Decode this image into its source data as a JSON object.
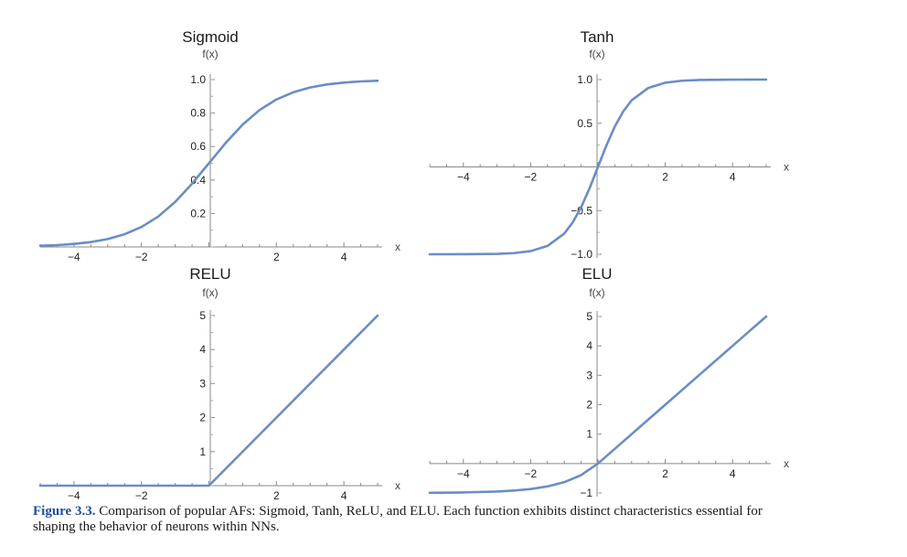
{
  "chart_data": [
    {
      "type": "line",
      "title": "Sigmoid",
      "xlabel": "x",
      "ylabel": "f(x)",
      "xlim": [
        -5,
        5
      ],
      "ylim": [
        0,
        1.0
      ],
      "xticks": [
        -4,
        -2,
        2,
        4
      ],
      "xtick_labels": [
        "−4",
        "−2",
        "2",
        "4"
      ],
      "yticks": [
        0.2,
        0.4,
        0.6,
        0.8,
        1.0
      ],
      "ytick_labels": [
        "0.2",
        "0.4",
        "0.6",
        "0.8",
        "1.0"
      ],
      "series": [
        {
          "color": "#6a8dc6",
          "x": [
            -5,
            -4.5,
            -4,
            -3.5,
            -3,
            -2.5,
            -2,
            -1.5,
            -1,
            -0.5,
            0,
            0.5,
            1,
            1.5,
            2,
            2.5,
            3,
            3.5,
            4,
            4.5,
            5
          ],
          "y": [
            0.007,
            0.011,
            0.018,
            0.029,
            0.047,
            0.076,
            0.119,
            0.182,
            0.269,
            0.378,
            0.5,
            0.622,
            0.731,
            0.818,
            0.881,
            0.924,
            0.953,
            0.971,
            0.982,
            0.989,
            0.993
          ]
        }
      ]
    },
    {
      "type": "line",
      "title": "Tanh",
      "xlabel": "x",
      "ylabel": "f(x)",
      "xlim": [
        -5,
        5
      ],
      "ylim": [
        -1.0,
        1.0
      ],
      "xticks": [
        -4,
        -2,
        2,
        4
      ],
      "xtick_labels": [
        "−4",
        "−2",
        "2",
        "4"
      ],
      "yticks": [
        -1.0,
        -0.5,
        0.5,
        1.0
      ],
      "ytick_labels": [
        "−1.0",
        "−0.5",
        "0.5",
        "1.0"
      ],
      "series": [
        {
          "color": "#6a8dc6",
          "x": [
            -5,
            -4,
            -3,
            -2.5,
            -2,
            -1.5,
            -1,
            -0.75,
            -0.5,
            -0.25,
            0,
            0.25,
            0.5,
            0.75,
            1,
            1.5,
            2,
            2.5,
            3,
            4,
            5
          ],
          "y": [
            -1.0,
            -0.999,
            -0.995,
            -0.987,
            -0.964,
            -0.905,
            -0.762,
            -0.635,
            -0.462,
            -0.245,
            0,
            0.245,
            0.462,
            0.635,
            0.762,
            0.905,
            0.964,
            0.987,
            0.995,
            0.999,
            1.0
          ]
        }
      ]
    },
    {
      "type": "line",
      "title": "RELU",
      "xlabel": "x",
      "ylabel": "f(x)",
      "xlim": [
        -5,
        5
      ],
      "ylim": [
        0,
        5
      ],
      "xticks": [
        -4,
        -2,
        2,
        4
      ],
      "xtick_labels": [
        "−4",
        "−2",
        "2",
        "4"
      ],
      "yticks": [
        1,
        2,
        3,
        4,
        5
      ],
      "ytick_labels": [
        "1",
        "2",
        "3",
        "4",
        "5"
      ],
      "series": [
        {
          "color": "#6a8dc6",
          "x": [
            -5,
            0,
            5
          ],
          "y": [
            0,
            0,
            5
          ]
        }
      ]
    },
    {
      "type": "line",
      "title": "ELU",
      "xlabel": "x",
      "ylabel": "f(x)",
      "xlim": [
        -5,
        5
      ],
      "ylim": [
        -1,
        5
      ],
      "xticks": [
        -4,
        -2,
        2,
        4
      ],
      "xtick_labels": [
        "−4",
        "−2",
        "2",
        "4"
      ],
      "yticks": [
        -1,
        1,
        2,
        3,
        4,
        5
      ],
      "ytick_labels": [
        "−1",
        "1",
        "2",
        "3",
        "4",
        "5"
      ],
      "series": [
        {
          "color": "#6a8dc6",
          "x": [
            -5,
            -4,
            -3,
            -2.5,
            -2,
            -1.5,
            -1,
            -0.5,
            0,
            1,
            2,
            3,
            4,
            5
          ],
          "y": [
            -0.993,
            -0.982,
            -0.95,
            -0.918,
            -0.865,
            -0.777,
            -0.632,
            -0.393,
            0,
            1,
            2,
            3,
            4,
            5
          ]
        }
      ]
    }
  ],
  "caption": {
    "label": "Figure 3.3.",
    "text": " Comparison of popular AFs: Sigmoid, Tanh, ReLU, and ELU. Each function exhibits distinct characteristics essential for shaping the behavior of neurons within NNs."
  }
}
